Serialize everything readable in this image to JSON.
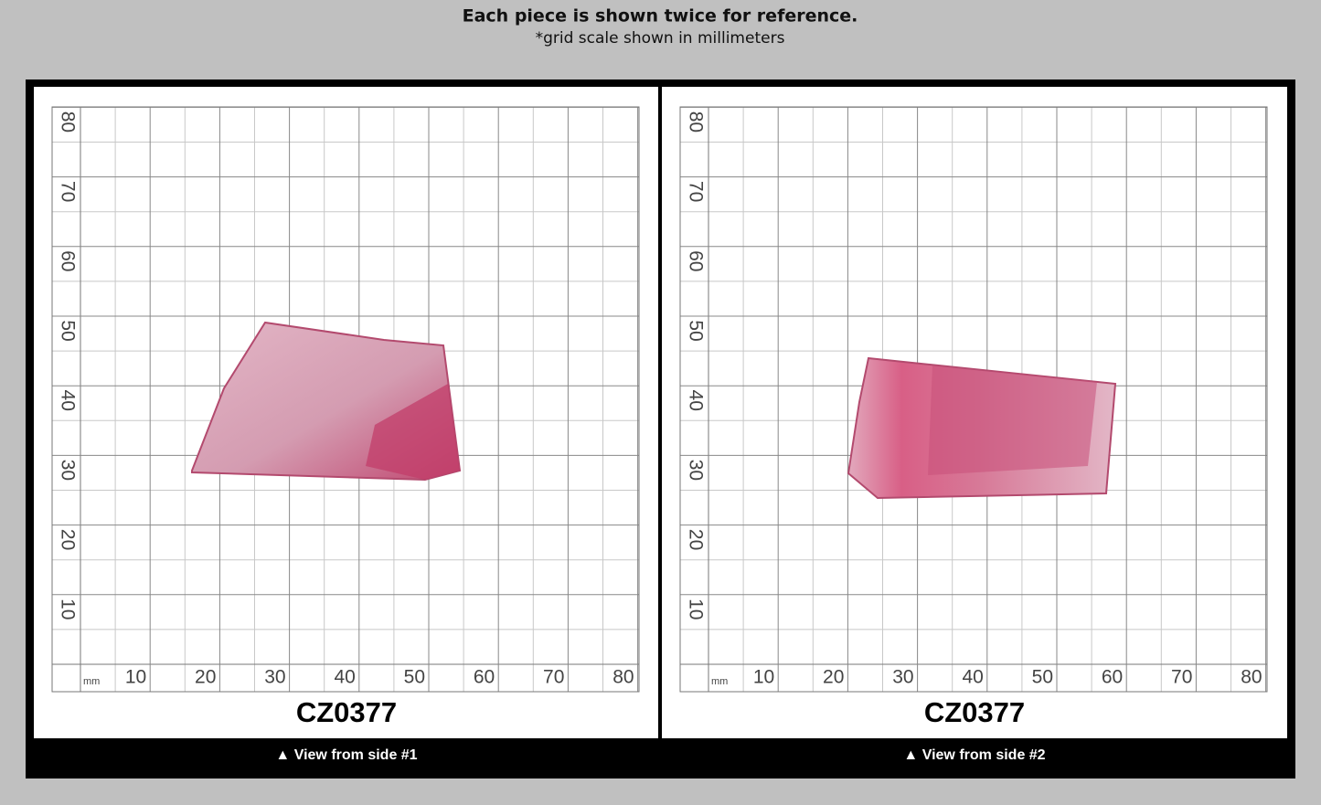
{
  "header": {
    "title": "Each piece is shown twice for reference.",
    "subtitle": "*grid scale shown in millimeters"
  },
  "grid": {
    "unit": "mm",
    "x_labels": [
      10,
      20,
      30,
      40,
      50,
      60,
      70,
      80
    ],
    "y_labels": [
      10,
      20,
      30,
      40,
      50,
      60,
      70,
      80
    ]
  },
  "panels": [
    {
      "code": "CZ0377",
      "caption": "▲ View from side #1"
    },
    {
      "code": "CZ0377",
      "caption": "▲ View from side #2"
    }
  ]
}
